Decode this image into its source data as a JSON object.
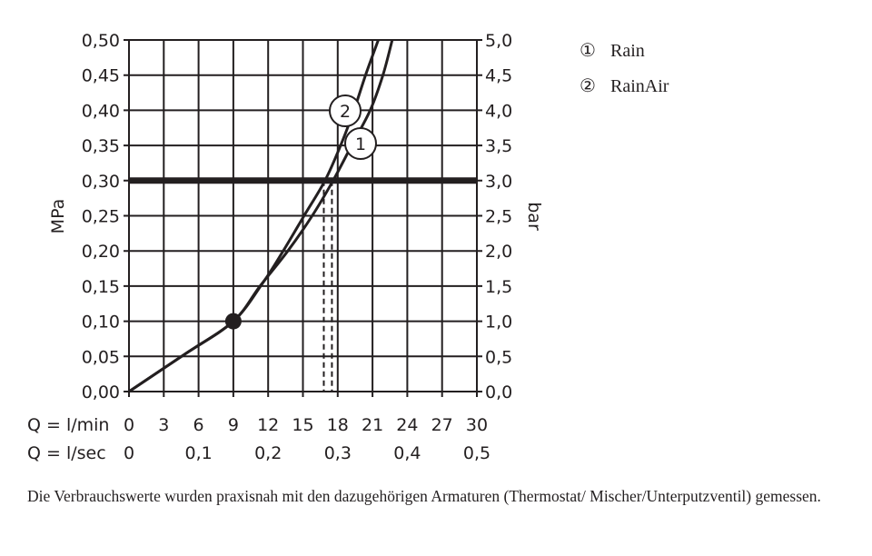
{
  "chart_data": {
    "type": "line",
    "title": "",
    "ylabel_left": "MPa",
    "ylabel_right": "bar",
    "xlabel_rows": [
      {
        "label": "Q = l/min",
        "ticks": [
          "0",
          "3",
          "6",
          "9",
          "12",
          "15",
          "18",
          "21",
          "24",
          "27",
          "30"
        ],
        "values": [
          0,
          3,
          6,
          9,
          12,
          15,
          18,
          21,
          24,
          27,
          30
        ]
      },
      {
        "label": "Q = l/sec",
        "ticks": [
          "0",
          "0,1",
          "0,2",
          "0,3",
          "0,4",
          "0,5"
        ],
        "values": [
          0,
          6,
          12,
          18,
          24,
          30
        ]
      }
    ],
    "xlim": [
      0,
      30
    ],
    "ylim": [
      0,
      0.5
    ],
    "yticks_left": [
      "0,00",
      "0,05",
      "0,10",
      "0,15",
      "0,20",
      "0,25",
      "0,30",
      "0,35",
      "0,40",
      "0,45",
      "0,50"
    ],
    "yticks_right": [
      "0,0",
      "0,5",
      "1,0",
      "1,5",
      "2,0",
      "2,5",
      "3,0",
      "3,5",
      "4,0",
      "4,5",
      "5,0"
    ],
    "grid": true,
    "reference_line": {
      "y": 0.3,
      "style": "thick"
    },
    "marker_point": {
      "x": 9,
      "y": 0.1
    },
    "dashed_drops": [
      16.8,
      17.5
    ],
    "series": [
      {
        "name": "Rain",
        "label": "1",
        "points": [
          [
            0,
            0
          ],
          [
            4.8,
            0.053
          ],
          [
            9,
            0.1
          ],
          [
            11.3,
            0.15
          ],
          [
            13.7,
            0.2
          ],
          [
            15.8,
            0.25
          ],
          [
            17.6,
            0.3
          ],
          [
            19.2,
            0.35
          ],
          [
            20.8,
            0.4
          ],
          [
            21.9,
            0.45
          ],
          [
            22.7,
            0.5
          ]
        ]
      },
      {
        "name": "RainAir",
        "label": "2",
        "points": [
          [
            0,
            0
          ],
          [
            4.8,
            0.053
          ],
          [
            9,
            0.1
          ],
          [
            11.6,
            0.156
          ],
          [
            13.3,
            0.2
          ],
          [
            15.1,
            0.25
          ],
          [
            16.9,
            0.3
          ],
          [
            18.25,
            0.35
          ],
          [
            19.4,
            0.4
          ],
          [
            20.4,
            0.45
          ],
          [
            21.5,
            0.5
          ]
        ]
      }
    ],
    "legend": {
      "placement": "right",
      "entries": [
        {
          "marker": "①",
          "text": "Rain"
        },
        {
          "marker": "②",
          "text": "RainAir"
        }
      ]
    }
  },
  "footer": "Die Verbrauchswerte wurden praxisnah mit den dazugehörigen Armaturen (Thermostat/ Mischer/Unterputzventil) gemessen."
}
